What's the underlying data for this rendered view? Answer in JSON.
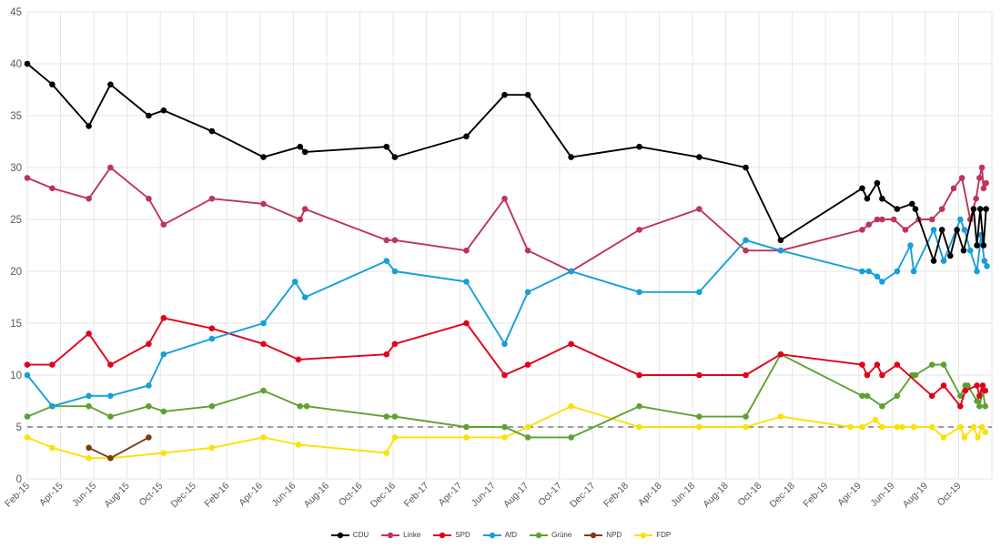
{
  "chart_data": {
    "type": "line",
    "title": "",
    "x_axis": {
      "tick_step_months": 2,
      "x_max_months": 58,
      "tick_labels": [
        "Feb-15",
        "Apr-15",
        "Jun-15",
        "Aug-15",
        "Oct-15",
        "Dec-15",
        "Feb-16",
        "Apr-16",
        "Jun-16",
        "Aug-16",
        "Oct-16",
        "Dec-16",
        "Feb-17",
        "Apr-17",
        "Jun-17",
        "Aug-17",
        "Oct-17",
        "Dec-17",
        "Feb-18",
        "Apr-18",
        "Jun-18",
        "Aug-18",
        "Oct-18",
        "Dec-18",
        "Feb-19",
        "Apr-19",
        "Jun-19",
        "Aug-19",
        "Oct-19"
      ]
    },
    "y_axis": {
      "ylim": [
        0,
        45
      ],
      "tick_labels": [
        "0",
        "5",
        "10",
        "15",
        "20",
        "25",
        "30",
        "35",
        "40",
        "45"
      ],
      "ticks": [
        0,
        5,
        10,
        15,
        20,
        25,
        30,
        35,
        40,
        45
      ]
    },
    "grid": true,
    "grid_color": "#e6e6e6",
    "axis_text_color": "#595959",
    "threshold_line": {
      "value": 5,
      "style": "dashed",
      "color": "#7f7f7f"
    },
    "legend_position": "bottom-center",
    "series": [
      {
        "name": "CDU",
        "color": "#000000",
        "z": 7,
        "points": [
          [
            0,
            40
          ],
          [
            1.5,
            38
          ],
          [
            3.7,
            34
          ],
          [
            5,
            38
          ],
          [
            7.3,
            35
          ],
          [
            8.2,
            35.5
          ],
          [
            11.1,
            33.5
          ],
          [
            14.2,
            31
          ],
          [
            16.4,
            32
          ],
          [
            16.7,
            31.5
          ],
          [
            21.6,
            32
          ],
          [
            22.1,
            31
          ],
          [
            26.4,
            33
          ],
          [
            28.7,
            37
          ],
          [
            30.1,
            37
          ],
          [
            32.7,
            31
          ],
          [
            36.8,
            32
          ],
          [
            40.4,
            31
          ],
          [
            43.2,
            30
          ],
          [
            45.3,
            23
          ],
          [
            50.2,
            28
          ],
          [
            50.5,
            27
          ],
          [
            51.1,
            28.5
          ],
          [
            51.4,
            27
          ],
          [
            52.3,
            26
          ],
          [
            53.2,
            26.5
          ],
          [
            53.4,
            26
          ],
          [
            54.5,
            21
          ],
          [
            55,
            24
          ],
          [
            55.5,
            21.5
          ],
          [
            55.9,
            24
          ],
          [
            56.3,
            22
          ],
          [
            56.9,
            26
          ],
          [
            57.1,
            22.5
          ],
          [
            57.3,
            26
          ],
          [
            57.5,
            22.5
          ],
          [
            57.65,
            26
          ]
        ]
      },
      {
        "name": "Linke",
        "color": "#c03359",
        "z": 5,
        "points": [
          [
            0,
            29
          ],
          [
            1.5,
            28
          ],
          [
            3.7,
            27
          ],
          [
            5,
            30
          ],
          [
            7.3,
            27
          ],
          [
            8.2,
            24.5
          ],
          [
            11.1,
            27
          ],
          [
            14.2,
            26.5
          ],
          [
            16.4,
            25
          ],
          [
            16.7,
            26
          ],
          [
            21.6,
            23
          ],
          [
            22.1,
            23
          ],
          [
            26.4,
            22
          ],
          [
            28.7,
            27
          ],
          [
            30.1,
            22
          ],
          [
            32.7,
            20
          ],
          [
            36.8,
            24
          ],
          [
            40.4,
            26
          ],
          [
            43.2,
            22
          ],
          [
            45.3,
            22
          ],
          [
            50.2,
            24
          ],
          [
            50.6,
            24.5
          ],
          [
            51.1,
            25
          ],
          [
            51.4,
            25
          ],
          [
            52.1,
            25
          ],
          [
            52.8,
            24
          ],
          [
            53.6,
            25
          ],
          [
            54.4,
            25
          ],
          [
            55,
            26
          ],
          [
            55.7,
            28
          ],
          [
            56.2,
            29
          ],
          [
            56.7,
            25
          ],
          [
            57.05,
            27
          ],
          [
            57.25,
            29
          ],
          [
            57.4,
            30
          ],
          [
            57.5,
            28
          ],
          [
            57.65,
            28.5
          ]
        ]
      },
      {
        "name": "SPD",
        "color": "#e30019",
        "z": 4,
        "points": [
          [
            0,
            11
          ],
          [
            1.5,
            11
          ],
          [
            3.7,
            14
          ],
          [
            5,
            11
          ],
          [
            7.3,
            13
          ],
          [
            8.2,
            15.5
          ],
          [
            11.1,
            14.5
          ],
          [
            14.2,
            13
          ],
          [
            16.3,
            11.5
          ],
          [
            21.6,
            12
          ],
          [
            22.1,
            13
          ],
          [
            26.4,
            15
          ],
          [
            28.7,
            10
          ],
          [
            30.1,
            11
          ],
          [
            32.7,
            13
          ],
          [
            36.8,
            10
          ],
          [
            40.4,
            10
          ],
          [
            43.2,
            10
          ],
          [
            45.3,
            12
          ],
          [
            50.2,
            11
          ],
          [
            50.5,
            10
          ],
          [
            51.1,
            11
          ],
          [
            51.4,
            10
          ],
          [
            52.3,
            11
          ],
          [
            54.4,
            8
          ],
          [
            55.1,
            9
          ],
          [
            56.1,
            7
          ],
          [
            56.4,
            8.5
          ],
          [
            57.1,
            9
          ],
          [
            57.25,
            8
          ],
          [
            57.45,
            9
          ],
          [
            57.6,
            8.5
          ]
        ]
      },
      {
        "name": "AfD",
        "color": "#159fdb",
        "z": 6,
        "points": [
          [
            0,
            10
          ],
          [
            1.5,
            7
          ],
          [
            3.7,
            8
          ],
          [
            5,
            8
          ],
          [
            7.3,
            9
          ],
          [
            8.2,
            12
          ],
          [
            11.1,
            13.5
          ],
          [
            14.2,
            15
          ],
          [
            16.1,
            19
          ],
          [
            16.7,
            17.5
          ],
          [
            21.6,
            21
          ],
          [
            22.1,
            20
          ],
          [
            26.4,
            19
          ],
          [
            28.7,
            13
          ],
          [
            30.1,
            18
          ],
          [
            32.7,
            20
          ],
          [
            36.8,
            18
          ],
          [
            40.4,
            18
          ],
          [
            43.2,
            23
          ],
          [
            45.3,
            22
          ],
          [
            50.2,
            20
          ],
          [
            50.6,
            20
          ],
          [
            51.1,
            19.5
          ],
          [
            51.4,
            19
          ],
          [
            52.3,
            20
          ],
          [
            53.1,
            22.5
          ],
          [
            53.3,
            20
          ],
          [
            54.5,
            24
          ],
          [
            55.1,
            21
          ],
          [
            56.1,
            25
          ],
          [
            56.35,
            24
          ],
          [
            56.7,
            22
          ],
          [
            57.1,
            20
          ],
          [
            57.35,
            23.5
          ],
          [
            57.55,
            21
          ],
          [
            57.7,
            20.5
          ]
        ]
      },
      {
        "name": "Grüne",
        "color": "#5fa131",
        "z": 2,
        "points": [
          [
            0,
            6
          ],
          [
            1.5,
            7
          ],
          [
            3.7,
            7
          ],
          [
            5,
            6
          ],
          [
            7.3,
            7
          ],
          [
            8.2,
            6.5
          ],
          [
            11.1,
            7
          ],
          [
            14.2,
            8.5
          ],
          [
            16.4,
            7
          ],
          [
            16.8,
            7
          ],
          [
            21.6,
            6
          ],
          [
            22.1,
            6
          ],
          [
            26.4,
            5
          ],
          [
            28.7,
            5
          ],
          [
            30.1,
            4
          ],
          [
            32.7,
            4
          ],
          [
            36.8,
            7
          ],
          [
            40.4,
            6
          ],
          [
            43.2,
            6
          ],
          [
            45.3,
            12
          ],
          [
            50.2,
            8
          ],
          [
            50.5,
            8
          ],
          [
            51.4,
            7
          ],
          [
            52.3,
            8
          ],
          [
            53.2,
            10
          ],
          [
            53.4,
            10
          ],
          [
            54.4,
            11
          ],
          [
            55.1,
            11
          ],
          [
            56.1,
            8
          ],
          [
            56.4,
            9
          ],
          [
            56.55,
            9
          ],
          [
            57.1,
            7.5
          ],
          [
            57.25,
            7
          ],
          [
            57.45,
            8.5
          ],
          [
            57.6,
            7
          ]
        ]
      },
      {
        "name": "NPD",
        "color": "#7a3b12",
        "z": 3,
        "points": [
          [
            3.7,
            3
          ],
          [
            5,
            2
          ],
          [
            7.3,
            4
          ]
        ]
      },
      {
        "name": "FDP",
        "color": "#fbe106",
        "z": 1,
        "points": [
          [
            0,
            4
          ],
          [
            1.5,
            3
          ],
          [
            3.7,
            2
          ],
          [
            5,
            2
          ],
          [
            8.2,
            2.5
          ],
          [
            11.1,
            3
          ],
          [
            14.2,
            4
          ],
          [
            16.3,
            3.3
          ],
          [
            21.6,
            2.5
          ],
          [
            22.1,
            4
          ],
          [
            26.4,
            4
          ],
          [
            28.7,
            4
          ],
          [
            30.1,
            5
          ],
          [
            32.7,
            7
          ],
          [
            36.8,
            5
          ],
          [
            40.4,
            5
          ],
          [
            43.2,
            5
          ],
          [
            45.3,
            6
          ],
          [
            49.5,
            5
          ],
          [
            50.2,
            5
          ],
          [
            51,
            5.7
          ],
          [
            51.4,
            5
          ],
          [
            52.3,
            5
          ],
          [
            52.6,
            5
          ],
          [
            53.3,
            5
          ],
          [
            54.4,
            5
          ],
          [
            55.1,
            4
          ],
          [
            56.1,
            5
          ],
          [
            56.35,
            4
          ],
          [
            56.9,
            5
          ],
          [
            57.15,
            4
          ],
          [
            57.4,
            5
          ],
          [
            57.6,
            4.5
          ]
        ]
      }
    ]
  }
}
